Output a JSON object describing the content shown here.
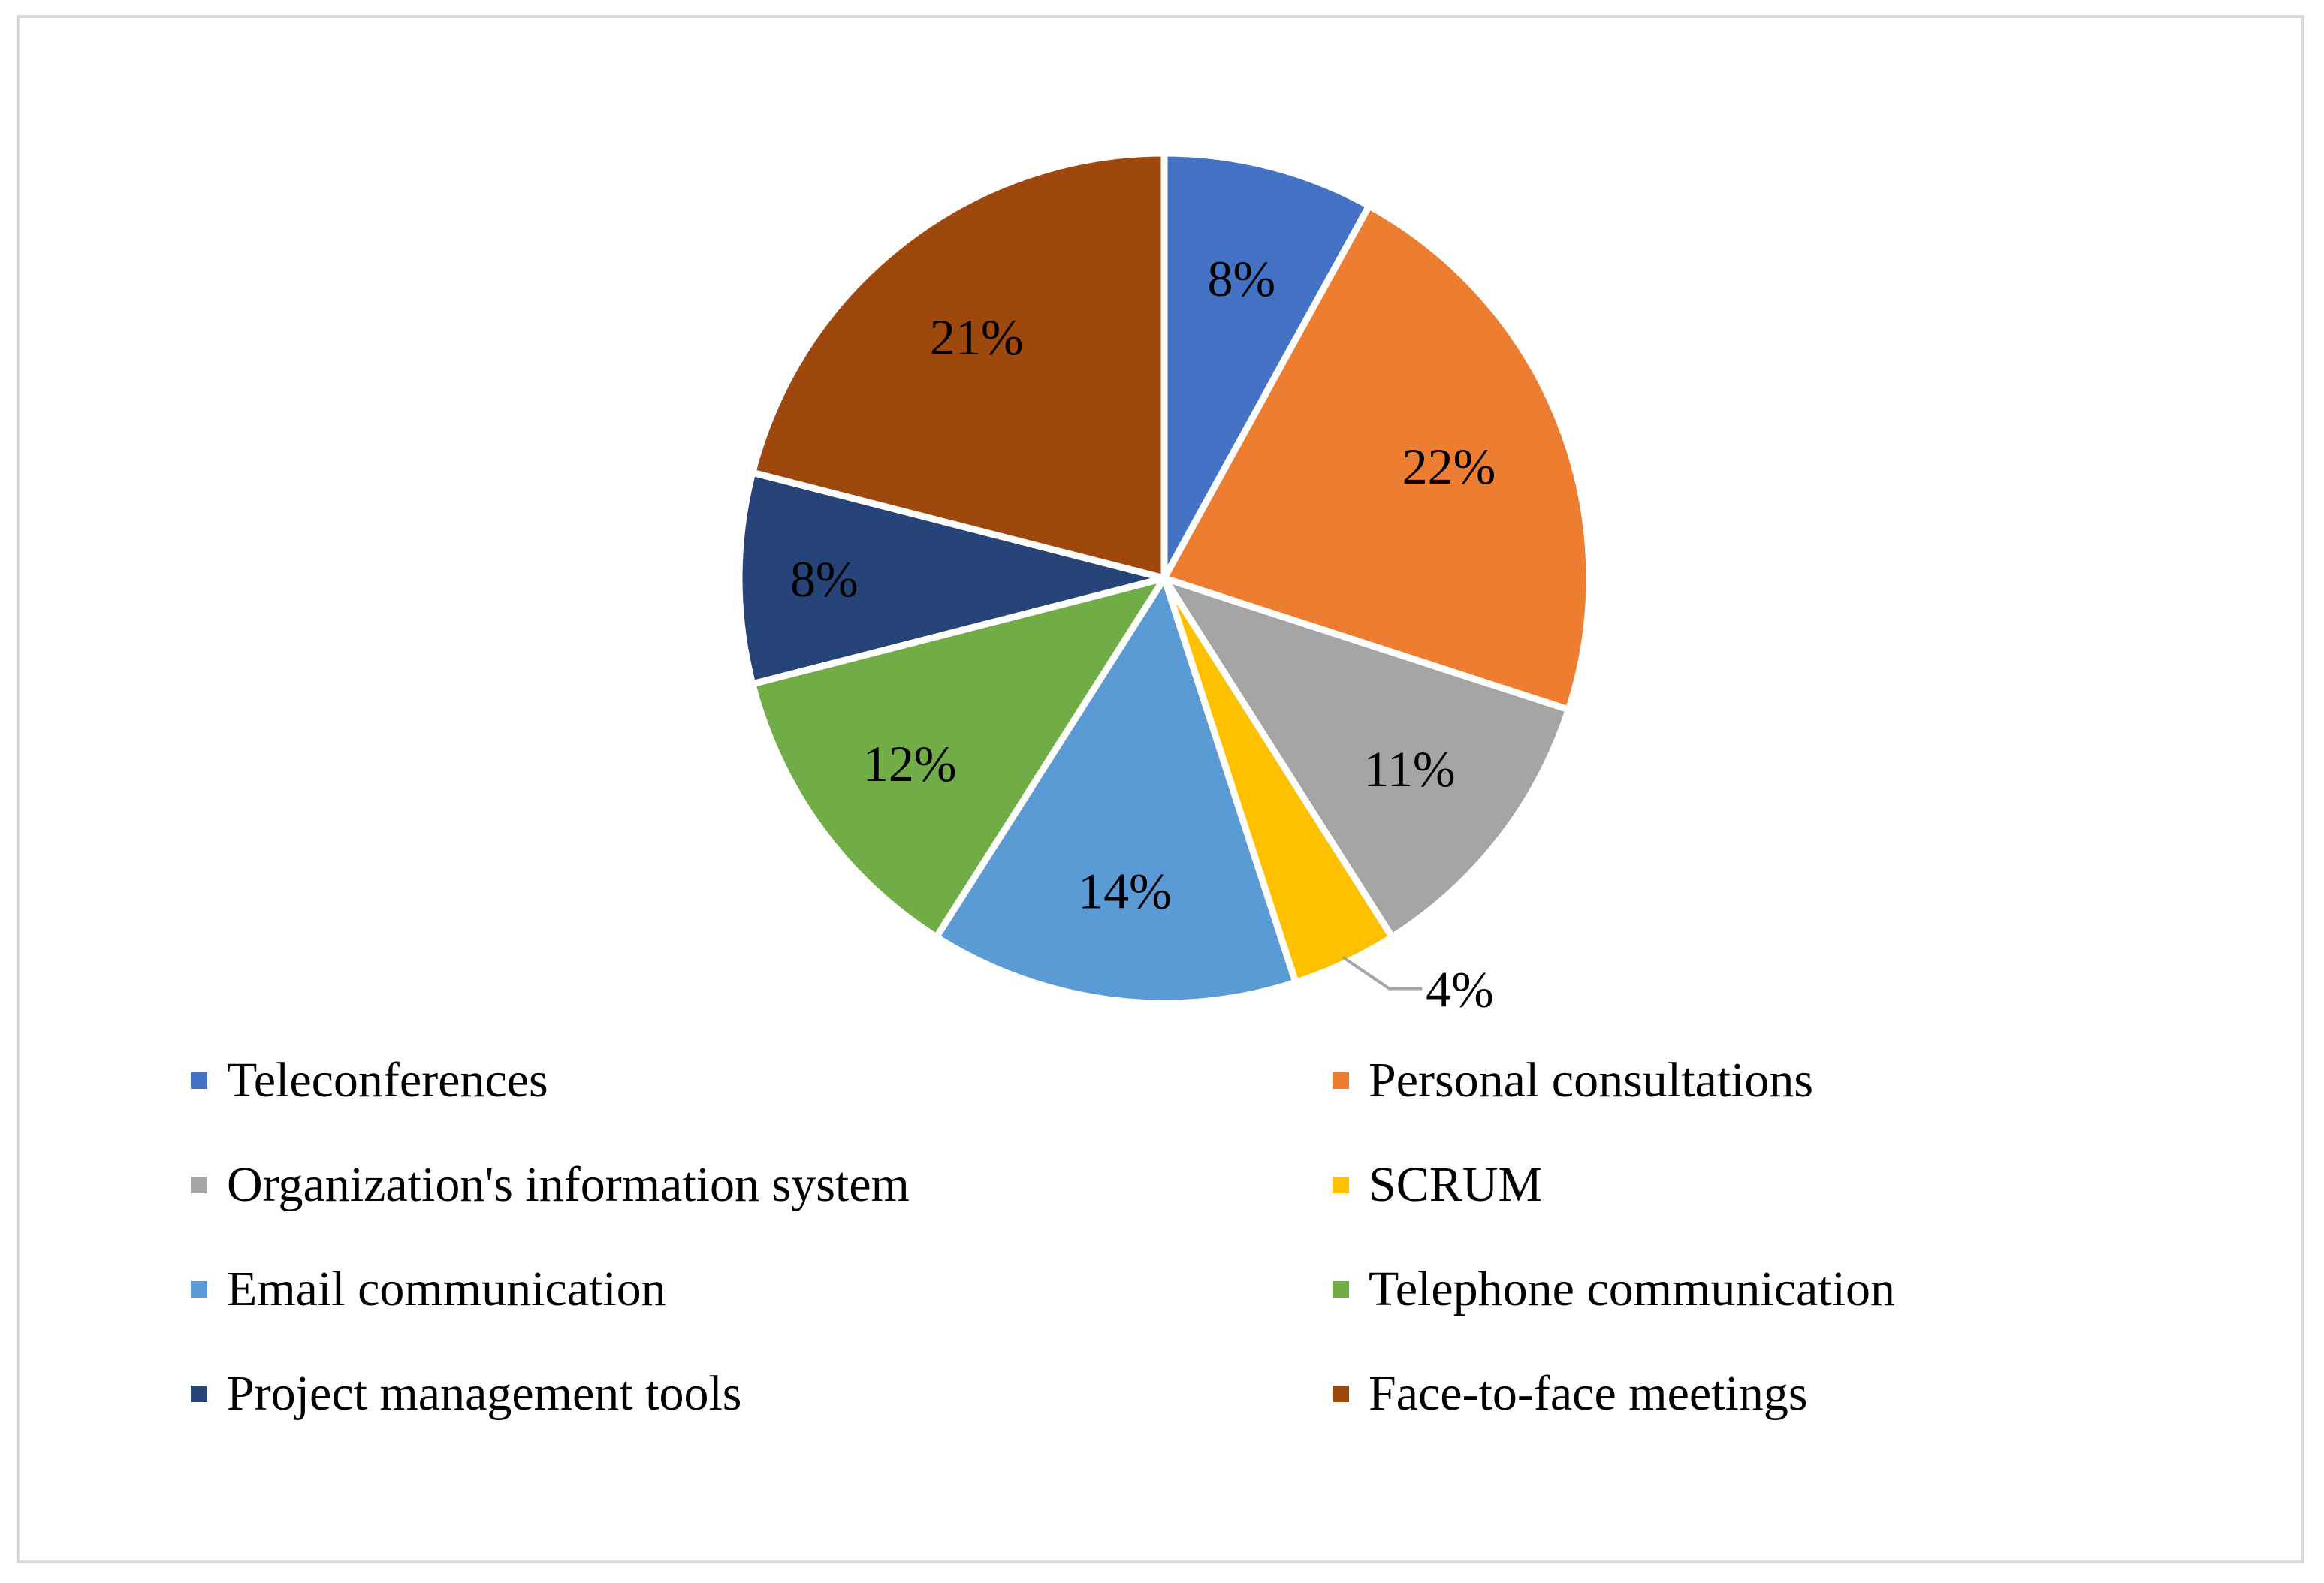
{
  "chart_data": {
    "type": "pie",
    "title": "",
    "slices": [
      {
        "name": "Teleconferences",
        "value": 8,
        "label": "8%",
        "color": "#4472C4"
      },
      {
        "name": "Personal consultations",
        "value": 22,
        "label": "22%",
        "color": "#ED7D31"
      },
      {
        "name": "Organization's information system",
        "value": 11,
        "label": "11%",
        "color": "#A5A5A5"
      },
      {
        "name": "SCRUM",
        "value": 4,
        "label": "4%",
        "color": "#FFC000"
      },
      {
        "name": "Email communication",
        "value": 14,
        "label": "14%",
        "color": "#5B9BD5"
      },
      {
        "name": "Telephone communication",
        "value": 12,
        "label": "12%",
        "color": "#70AD47"
      },
      {
        "name": "Project management tools",
        "value": 8,
        "label": "8%",
        "color": "#264478"
      },
      {
        "name": "Face-to-face meetings",
        "value": 21,
        "label": "21%",
        "color": "#9E480E"
      }
    ],
    "legend_position": "bottom",
    "legend_columns": 2
  }
}
